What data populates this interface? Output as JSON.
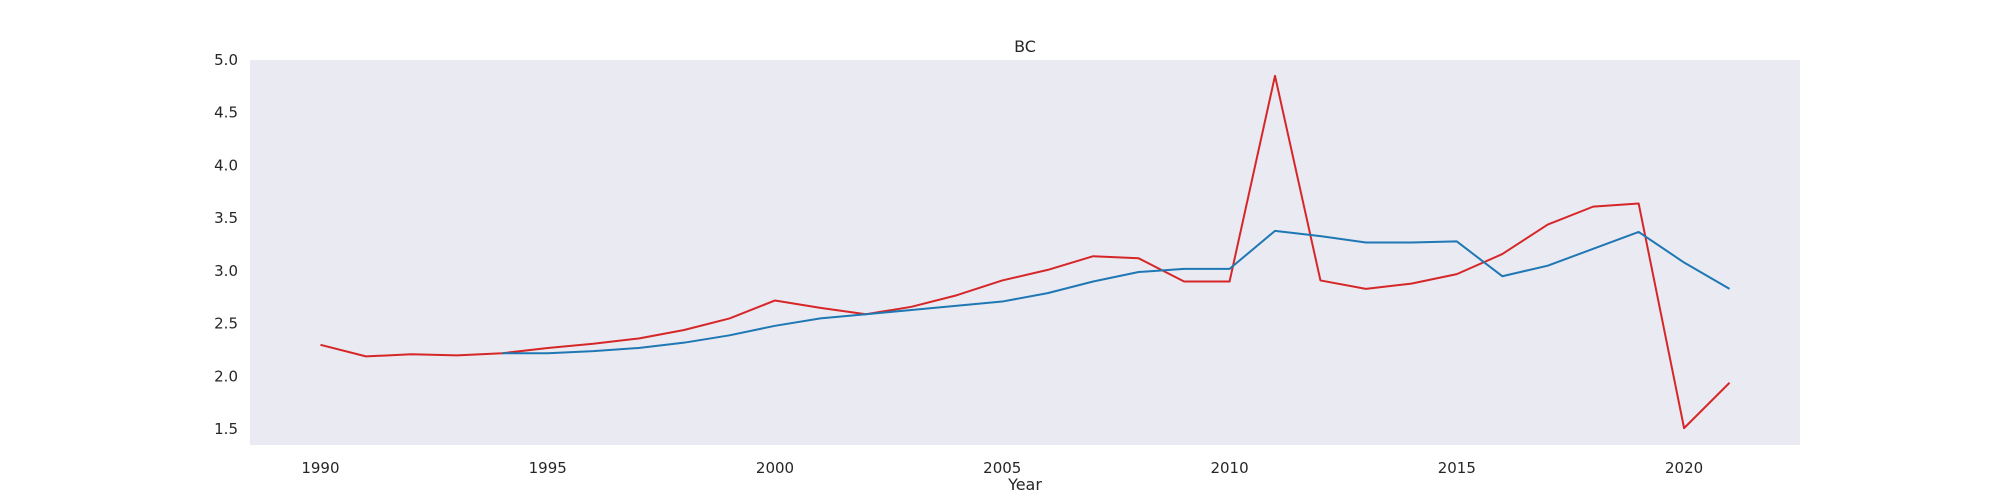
{
  "chart_data": {
    "type": "line",
    "title": "BC",
    "xlabel": "Year",
    "ylabel": "",
    "xlim": [
      1988.45,
      2022.55
    ],
    "ylim": [
      1.35,
      5.0
    ],
    "x_ticks": [
      1990,
      1995,
      2000,
      2005,
      2010,
      2015,
      2020
    ],
    "y_ticks": [
      1.5,
      2.0,
      2.5,
      3.0,
      3.5,
      4.0,
      4.5,
      5.0
    ],
    "grid": false,
    "background": "#eaeaf2",
    "series": [
      {
        "color": "#d62728",
        "x": [
          1990,
          1991,
          1992,
          1993,
          1994,
          1995,
          1996,
          1997,
          1998,
          1999,
          2000,
          2001,
          2002,
          2003,
          2004,
          2005,
          2006,
          2007,
          2008,
          2009,
          2010,
          2011,
          2012,
          2013,
          2014,
          2015,
          2016,
          2017,
          2018,
          2019,
          2020,
          2021
        ],
        "values": [
          2.3,
          2.19,
          2.21,
          2.2,
          2.22,
          2.27,
          2.31,
          2.36,
          2.44,
          2.55,
          2.72,
          2.65,
          2.59,
          2.66,
          2.77,
          2.91,
          3.01,
          3.14,
          3.12,
          2.9,
          2.9,
          4.85,
          2.91,
          2.83,
          2.88,
          2.97,
          3.16,
          3.44,
          3.61,
          3.64,
          1.51,
          1.94
        ]
      },
      {
        "color": "#1f77b4",
        "x": [
          1994,
          1995,
          1996,
          1997,
          1998,
          1999,
          2000,
          2001,
          2002,
          2003,
          2004,
          2005,
          2006,
          2007,
          2008,
          2009,
          2010,
          2011,
          2012,
          2013,
          2014,
          2015,
          2016,
          2017,
          2018,
          2019,
          2020,
          2021
        ],
        "values": [
          2.22,
          2.22,
          2.24,
          2.27,
          2.32,
          2.39,
          2.48,
          2.55,
          2.59,
          2.63,
          2.67,
          2.71,
          2.79,
          2.9,
          2.99,
          3.02,
          3.02,
          3.38,
          3.33,
          3.27,
          3.27,
          3.28,
          2.95,
          3.05,
          3.21,
          3.37,
          3.08,
          2.83
        ]
      }
    ]
  }
}
